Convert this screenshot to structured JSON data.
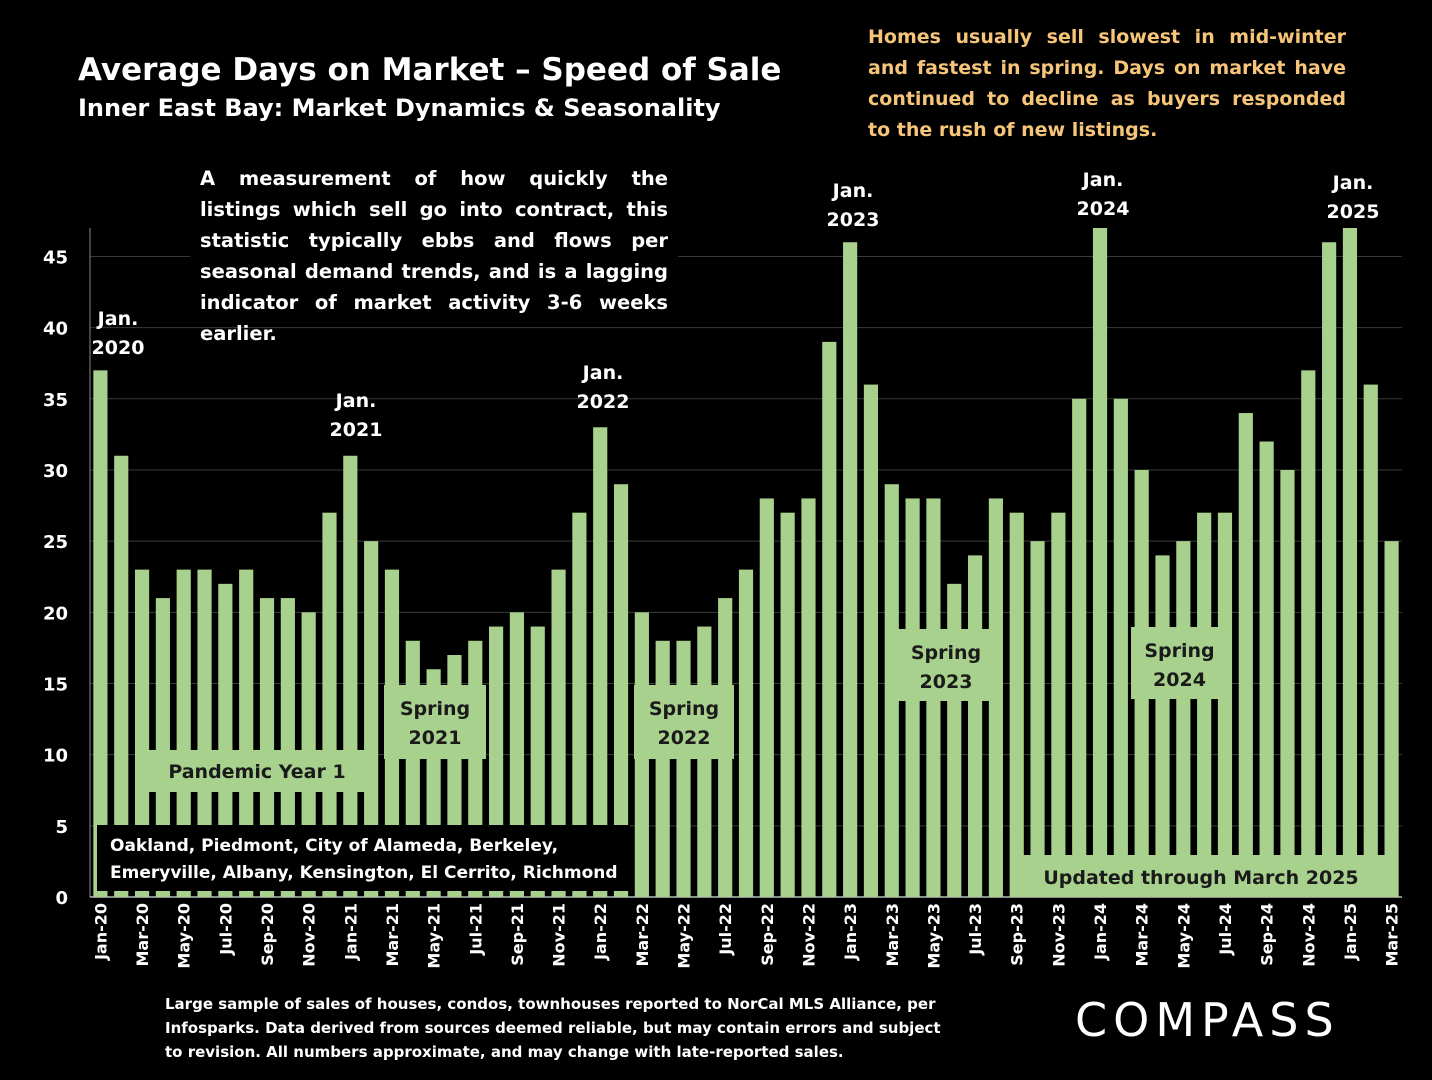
{
  "header": {
    "title": "Average Days on Market – Speed of Sale",
    "subtitle": "Inner East Bay: Market Dynamics & Seasonality"
  },
  "notes": {
    "top_right": "Homes usually sell slowest in mid-winter and fastest in spring. Days on market have continued to decline as buyers responded to the rush of new listings.",
    "measurement": "A measurement of how quickly the listings which sell go into contract, this statistic typically ebbs and flows per seasonal demand trends, and is a lagging indicator of market activity 3-6 weeks earlier.",
    "source": "Large sample of sales of houses, condos, townhouses reported to NorCal MLS Alliance, per Infosparks. Data derived from sources deemed reliable, but may contain errors and subject to revision. All numbers approximate, and may change with late-reported sales."
  },
  "brand": {
    "logo_text": "COMPASS"
  },
  "colors": {
    "bar": "#a9d18e",
    "background": "#000000",
    "note": "#f6c57a",
    "label_box": "#a9d18e",
    "grid": "#3a3a3a"
  },
  "chart_data": {
    "type": "bar",
    "title": "Average Days on Market – Speed of Sale",
    "ylim": [
      0,
      47
    ],
    "yticks": [
      0,
      5,
      10,
      15,
      20,
      25,
      30,
      35,
      40,
      45
    ],
    "grid": true,
    "categories": [
      "Jan-20",
      "Feb-20",
      "Mar-20",
      "Apr-20",
      "May-20",
      "Jun-20",
      "Jul-20",
      "Aug-20",
      "Sep-20",
      "Oct-20",
      "Nov-20",
      "Dec-20",
      "Jan-21",
      "Feb-21",
      "Mar-21",
      "Apr-21",
      "May-21",
      "Jun-21",
      "Jul-21",
      "Aug-21",
      "Sep-21",
      "Oct-21",
      "Nov-21",
      "Dec-21",
      "Jan-22",
      "Feb-22",
      "Mar-22",
      "Apr-22",
      "May-22",
      "Jun-22",
      "Jul-22",
      "Aug-22",
      "Sep-22",
      "Oct-22",
      "Nov-22",
      "Dec-22",
      "Jan-23",
      "Feb-23",
      "Mar-23",
      "Apr-23",
      "May-23",
      "Jun-23",
      "Jul-23",
      "Aug-23",
      "Sep-23",
      "Oct-23",
      "Nov-23",
      "Dec-23",
      "Jan-24",
      "Feb-24",
      "Mar-24",
      "Apr-24",
      "May-24",
      "Jun-24",
      "Jul-24",
      "Aug-24",
      "Sep-24",
      "Oct-24",
      "Nov-24",
      "Dec-24",
      "Jan-25",
      "Feb-25",
      "Mar-25"
    ],
    "tick_labels": [
      "Jan-20",
      "",
      "Mar-20",
      "",
      "May-20",
      "",
      "Jul-20",
      "",
      "Sep-20",
      "",
      "Nov-20",
      "",
      "Jan-21",
      "",
      "Mar-21",
      "",
      "May-21",
      "",
      "Jul-21",
      "",
      "Sep-21",
      "",
      "Nov-21",
      "",
      "Jan-22",
      "",
      "Mar-22",
      "",
      "May-22",
      "",
      "Jul-22",
      "",
      "Sep-22",
      "",
      "Nov-22",
      "",
      "Jan-23",
      "",
      "Mar-23",
      "",
      "May-23",
      "",
      "Jul-23",
      "",
      "Sep-23",
      "",
      "Nov-23",
      "",
      "Jan-24",
      "",
      "Mar-24",
      "",
      "May-24",
      "",
      "Jul-24",
      "",
      "Sep-24",
      "",
      "Nov-24",
      "",
      "Jan-25",
      "",
      "Mar-25"
    ],
    "values": [
      37,
      31,
      23,
      21,
      23,
      23,
      22,
      23,
      21,
      21,
      20,
      27,
      31,
      25,
      23,
      18,
      16,
      17,
      18,
      19,
      20,
      19,
      23,
      27,
      33,
      29,
      20,
      18,
      18,
      19,
      21,
      23,
      28,
      27,
      28,
      39,
      46,
      36,
      29,
      28,
      28,
      22,
      24,
      28,
      27,
      25,
      27,
      35,
      47,
      35,
      30,
      24,
      25,
      27,
      27,
      34,
      32,
      30,
      37,
      46,
      47,
      36,
      25
    ],
    "annotations": [
      {
        "line1": "Jan.",
        "line2": "2020",
        "index": 0
      },
      {
        "line1": "Jan.",
        "line2": "2021",
        "index": 12
      },
      {
        "line1": "Jan.",
        "line2": "2022",
        "index": 24
      },
      {
        "line1": "Jan.",
        "line2": "2023",
        "index": 36
      },
      {
        "line1": "Jan.",
        "line2": "2024",
        "index": 48
      },
      {
        "line1": "Jan.",
        "line2": "2025",
        "index": 60
      }
    ],
    "period_labels": [
      {
        "text": "Pandemic Year 1"
      },
      {
        "line1": "Spring",
        "line2": "2021"
      },
      {
        "line1": "Spring",
        "line2": "2022"
      },
      {
        "line1": "Spring",
        "line2": "2023"
      },
      {
        "line1": "Spring",
        "line2": "2024"
      },
      {
        "text": "Updated through March 2025"
      }
    ],
    "region_note": {
      "line1": "Oakland, Piedmont, City of Alameda, Berkeley,",
      "line2": "Emeryville, Albany, Kensington, El Cerrito, Richmond"
    }
  }
}
